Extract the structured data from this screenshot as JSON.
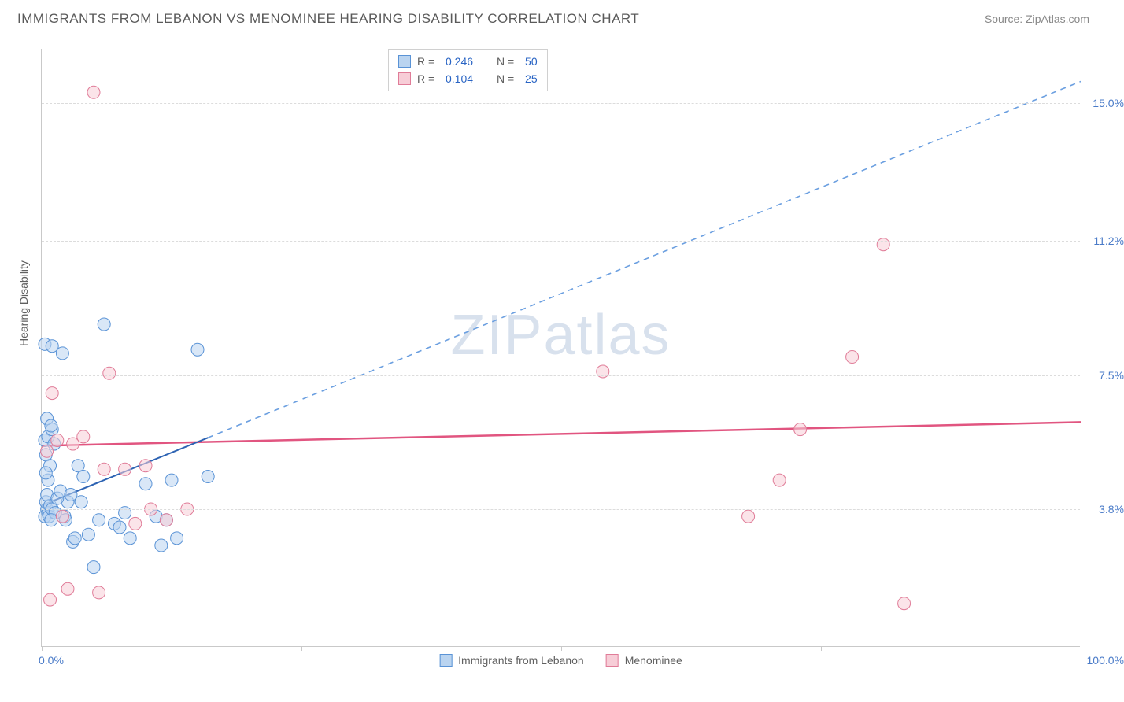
{
  "title": "IMMIGRANTS FROM LEBANON VS MENOMINEE HEARING DISABILITY CORRELATION CHART",
  "source": "Source: ZipAtlas.com",
  "y_axis_label": "Hearing Disability",
  "watermark": {
    "prefix": "ZIP",
    "suffix": "atlas"
  },
  "chart": {
    "type": "scatter",
    "background_color": "#ffffff",
    "grid_color": "#dcdcdc",
    "axis_color": "#c9c9c9",
    "xlim": [
      0,
      100
    ],
    "ylim": [
      0,
      16.5
    ],
    "xtick_positions": [
      0,
      25,
      50,
      75,
      100
    ],
    "xtick_labels": {
      "start": "0.0%",
      "end": "100.0%"
    },
    "ytick_positions": [
      3.8,
      7.5,
      11.2,
      15.0
    ],
    "ytick_labels": [
      "3.8%",
      "7.5%",
      "11.2%",
      "15.0%"
    ],
    "tick_label_color": "#4a7bc8",
    "tick_label_fontsize": 14,
    "marker_radius": 8,
    "marker_opacity": 0.55,
    "series": [
      {
        "name": "Immigrants from Lebanon",
        "color_fill": "#bad4f0",
        "color_stroke": "#5a93d6",
        "swatch_fill": "#bad4f0",
        "swatch_border": "#5a93d6",
        "R": "0.246",
        "N": "50",
        "trend": {
          "x1": 0,
          "y1": 3.9,
          "x2": 100,
          "y2": 15.6,
          "solid_until_x": 16,
          "solid_color": "#2d63b3",
          "dash_color": "#6b9fe0",
          "width": 2
        },
        "points": [
          [
            0.3,
            3.6
          ],
          [
            0.5,
            3.8
          ],
          [
            0.4,
            4.0
          ],
          [
            0.6,
            3.7
          ],
          [
            0.8,
            3.9
          ],
          [
            0.5,
            4.2
          ],
          [
            0.7,
            3.6
          ],
          [
            1.0,
            3.8
          ],
          [
            0.3,
            5.7
          ],
          [
            0.6,
            5.8
          ],
          [
            0.4,
            5.3
          ],
          [
            0.8,
            5.0
          ],
          [
            1.2,
            5.6
          ],
          [
            1.0,
            6.0
          ],
          [
            0.5,
            6.3
          ],
          [
            0.9,
            6.1
          ],
          [
            0.3,
            8.35
          ],
          [
            1.0,
            8.3
          ],
          [
            2.0,
            8.1
          ],
          [
            2.2,
            3.6
          ],
          [
            2.3,
            3.5
          ],
          [
            2.5,
            4.0
          ],
          [
            3.0,
            2.9
          ],
          [
            3.2,
            3.0
          ],
          [
            3.5,
            5.0
          ],
          [
            4.0,
            4.7
          ],
          [
            4.5,
            3.1
          ],
          [
            5.0,
            2.2
          ],
          [
            5.5,
            3.5
          ],
          [
            6.0,
            8.9
          ],
          [
            7.0,
            3.4
          ],
          [
            7.5,
            3.3
          ],
          [
            8.0,
            3.7
          ],
          [
            8.5,
            3.0
          ],
          [
            10.0,
            4.5
          ],
          [
            11.0,
            3.6
          ],
          [
            11.5,
            2.8
          ],
          [
            12.0,
            3.5
          ],
          [
            12.5,
            4.6
          ],
          [
            13.0,
            3.0
          ],
          [
            15.0,
            8.2
          ],
          [
            16.0,
            4.7
          ],
          [
            1.5,
            4.1
          ],
          [
            1.8,
            4.3
          ],
          [
            2.8,
            4.2
          ],
          [
            3.8,
            4.0
          ],
          [
            1.3,
            3.7
          ],
          [
            0.9,
            3.5
          ],
          [
            0.6,
            4.6
          ],
          [
            0.4,
            4.8
          ]
        ]
      },
      {
        "name": "Menominee",
        "color_fill": "#f7cdd7",
        "color_stroke": "#e07c98",
        "swatch_fill": "#f7cdd7",
        "swatch_border": "#e07c98",
        "R": "0.104",
        "N": "25",
        "trend": {
          "x1": 0,
          "y1": 5.55,
          "x2": 100,
          "y2": 6.2,
          "solid_until_x": 100,
          "solid_color": "#e15580",
          "dash_color": "#e15580",
          "width": 2.5
        },
        "points": [
          [
            0.5,
            5.4
          ],
          [
            0.8,
            1.3
          ],
          [
            1.0,
            7.0
          ],
          [
            1.5,
            5.7
          ],
          [
            2.0,
            3.6
          ],
          [
            2.5,
            1.6
          ],
          [
            3.0,
            5.6
          ],
          [
            4.0,
            5.8
          ],
          [
            5.0,
            15.3
          ],
          [
            5.5,
            1.5
          ],
          [
            6.0,
            4.9
          ],
          [
            6.5,
            7.55
          ],
          [
            8.0,
            4.9
          ],
          [
            9.0,
            3.4
          ],
          [
            10.0,
            5.0
          ],
          [
            10.5,
            3.8
          ],
          [
            12.0,
            3.5
          ],
          [
            14.0,
            3.8
          ],
          [
            54.0,
            7.6
          ],
          [
            68.0,
            3.6
          ],
          [
            71.0,
            4.6
          ],
          [
            73.0,
            6.0
          ],
          [
            78.0,
            8.0
          ],
          [
            81.0,
            11.1
          ],
          [
            83.0,
            1.2
          ]
        ]
      }
    ]
  },
  "legend_top_labels": {
    "R": "R =",
    "N": "N ="
  },
  "legend_bottom": [
    {
      "label": "Immigrants from Lebanon",
      "fill": "#bad4f0",
      "border": "#5a93d6"
    },
    {
      "label": "Menominee",
      "fill": "#f7cdd7",
      "border": "#e07c98"
    }
  ]
}
